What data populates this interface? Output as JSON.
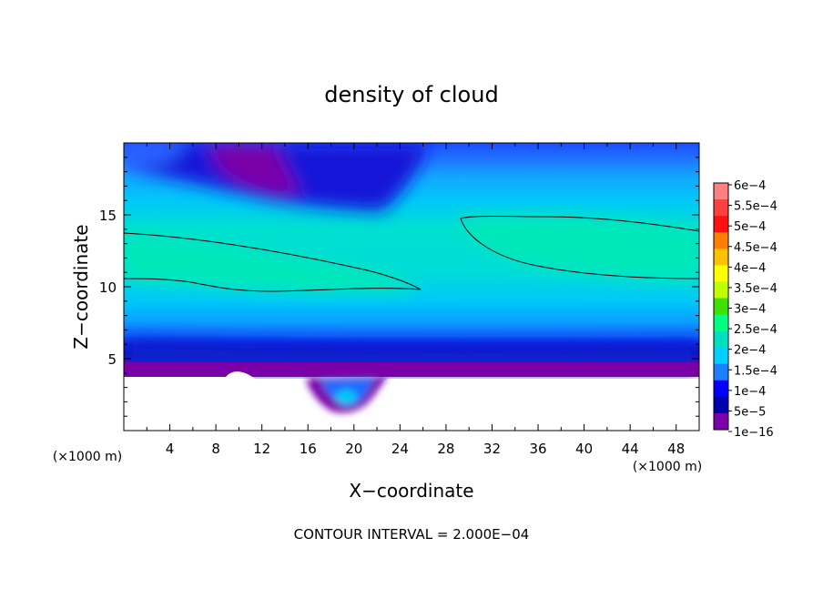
{
  "chart_data": {
    "type": "heatmap",
    "title": "density of cloud",
    "xlabel": "X−coordinate",
    "ylabel": "Z−coordinate",
    "x_unit_left": "(×1000 m)",
    "x_unit_right": "(×1000 m)",
    "footer": "CONTOUR INTERVAL = 2.000E−04",
    "xlim": [
      0,
      50
    ],
    "ylim": [
      0,
      20
    ],
    "x_ticks": [
      4,
      8,
      12,
      16,
      20,
      24,
      28,
      32,
      36,
      40,
      44,
      48
    ],
    "y_ticks": [
      5,
      10,
      15
    ],
    "colorbar": {
      "labels": [
        "6e−4",
        "5.5e−4",
        "5e−4",
        "4.5e−4",
        "4e−4",
        "3.5e−4",
        "3e−4",
        "2.5e−4",
        "2e−4",
        "1.5e−4",
        "1e−4",
        "5e−5",
        "1e−16"
      ],
      "colors": [
        "#ff8080",
        "#ff4040",
        "#ff1010",
        "#ff8000",
        "#ffc000",
        "#ffff00",
        "#c0ff00",
        "#40e000",
        "#00ff80",
        "#00e0c0",
        "#00d0ff",
        "#1a80ff",
        "#0000ff",
        "#0000b0",
        "#7a00a8"
      ]
    },
    "grid": false,
    "legend_position": "right"
  }
}
